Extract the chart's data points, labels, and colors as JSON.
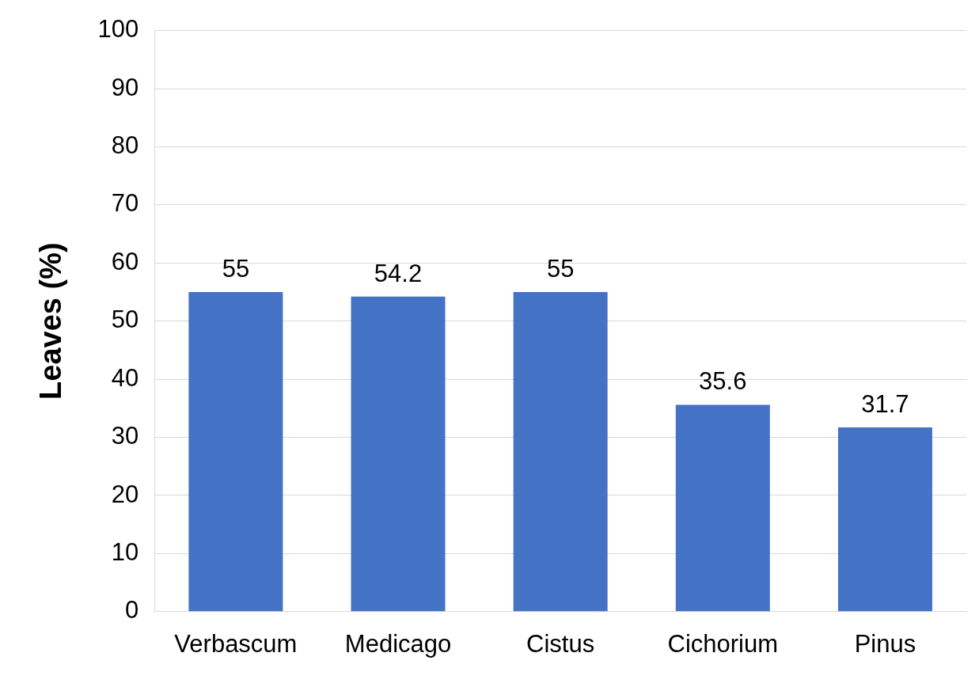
{
  "chart_data": {
    "type": "bar",
    "ylabel": "Leaves (%)",
    "categories": [
      "Verbascum",
      "Medicago",
      "Cistus",
      "Cichorium",
      "Pinus"
    ],
    "values": [
      55,
      54.2,
      55,
      35.6,
      31.7
    ],
    "color": "#4472c4",
    "ylim": [
      0,
      100
    ],
    "yticks": [
      0,
      10,
      20,
      30,
      40,
      50,
      60,
      70,
      80,
      90,
      100
    ],
    "grid": "y",
    "data_labels": true,
    "legend": false
  }
}
